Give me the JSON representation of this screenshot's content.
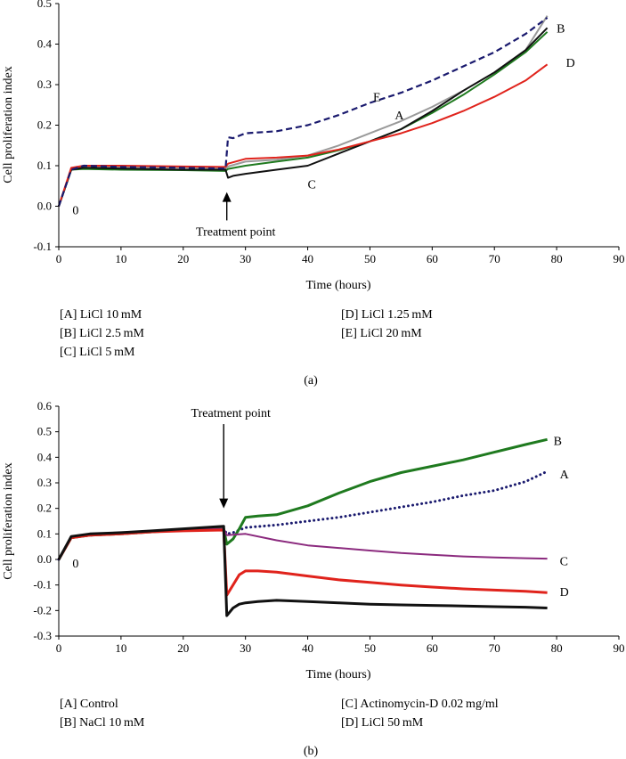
{
  "chart_data": [
    {
      "type": "line",
      "panel_label": "(a)",
      "xlabel": "Time (hours)",
      "ylabel": "Cell proliferation index",
      "xlim": [
        0,
        90
      ],
      "ylim": [
        -0.1,
        0.5
      ],
      "xticks": [
        0,
        10,
        20,
        30,
        40,
        50,
        60,
        70,
        80,
        90
      ],
      "yticks": [
        -0.1,
        0.0,
        0.1,
        0.2,
        0.3,
        0.4,
        0.5
      ],
      "ytick_decimals": 1,
      "grid": false,
      "annotations": {
        "treatment_label": "Treatment point",
        "treatment_x": 27,
        "arrow_direction": "up",
        "origin_label": "0"
      },
      "legend": {
        "left": [
          "[A] LiCl 10 mM",
          "[B] LiCl 2.5 mM",
          "[C] LiCl 5 mM"
        ],
        "right": [
          "[D] LiCl 1.25 mM",
          "[E] LiCl 20 mM"
        ]
      },
      "series": [
        {
          "name": "A",
          "label": "A",
          "color": "#9a9a9a",
          "style": "solid",
          "width": 2,
          "x": [
            0,
            2,
            4,
            10,
            20,
            26.8,
            27.2,
            30,
            35,
            40,
            45,
            50,
            55,
            60,
            65,
            70,
            75,
            78.5
          ],
          "y": [
            0,
            0.09,
            0.1,
            0.097,
            0.095,
            0.093,
            0.098,
            0.11,
            0.115,
            0.125,
            0.15,
            0.18,
            0.21,
            0.245,
            0.285,
            0.33,
            0.385,
            0.47
          ],
          "label_at": [
            54,
            0.225
          ]
        },
        {
          "name": "B",
          "label": "B",
          "color": "#1f7a1f",
          "style": "solid",
          "width": 2,
          "x": [
            0,
            2,
            4,
            10,
            20,
            26.8,
            27.2,
            30,
            35,
            40,
            45,
            50,
            55,
            60,
            65,
            70,
            75,
            78.5
          ],
          "y": [
            0,
            0.09,
            0.092,
            0.09,
            0.089,
            0.087,
            0.092,
            0.1,
            0.11,
            0.12,
            0.138,
            0.16,
            0.19,
            0.23,
            0.275,
            0.325,
            0.38,
            0.43
          ],
          "label_at": [
            80,
            0.44
          ]
        },
        {
          "name": "C",
          "label": "C",
          "color": "#111111",
          "style": "solid",
          "width": 2,
          "x": [
            0,
            2,
            4,
            10,
            20,
            26.8,
            27.2,
            28,
            30,
            35,
            40,
            45,
            50,
            55,
            60,
            65,
            70,
            75,
            78.5
          ],
          "y": [
            0,
            0.09,
            0.095,
            0.093,
            0.09,
            0.09,
            0.07,
            0.075,
            0.08,
            0.09,
            0.1,
            0.13,
            0.16,
            0.19,
            0.235,
            0.285,
            0.33,
            0.385,
            0.44
          ],
          "label_at": [
            40,
            0.055
          ]
        },
        {
          "name": "D",
          "label": "D",
          "color": "#e0231c",
          "style": "solid",
          "width": 2,
          "x": [
            0,
            2,
            4,
            10,
            20,
            26.8,
            27.2,
            30,
            35,
            40,
            45,
            50,
            55,
            60,
            65,
            70,
            75,
            78.5
          ],
          "y": [
            0,
            0.095,
            0.1,
            0.1,
            0.098,
            0.097,
            0.105,
            0.117,
            0.12,
            0.125,
            0.14,
            0.16,
            0.18,
            0.205,
            0.235,
            0.27,
            0.31,
            0.35
          ],
          "label_at": [
            81.5,
            0.355
          ]
        },
        {
          "name": "E",
          "label": "E",
          "color": "#1a1a6e",
          "style": "dashed",
          "width": 2.2,
          "x": [
            0,
            2,
            4,
            10,
            20,
            26.8,
            27.2,
            28,
            30,
            35,
            40,
            45,
            50,
            55,
            60,
            65,
            70,
            75,
            78.5
          ],
          "y": [
            0,
            0.09,
            0.1,
            0.097,
            0.095,
            0.093,
            0.17,
            0.168,
            0.18,
            0.185,
            0.2,
            0.225,
            0.255,
            0.28,
            0.31,
            0.345,
            0.38,
            0.425,
            0.465
          ],
          "label_at": [
            50.5,
            0.27
          ]
        }
      ]
    },
    {
      "type": "line",
      "panel_label": "(b)",
      "xlabel": "Time (hours)",
      "ylabel": "Cell proliferation index",
      "xlim": [
        0,
        90
      ],
      "ylim": [
        -0.3,
        0.6
      ],
      "xticks": [
        0,
        10,
        20,
        30,
        40,
        50,
        60,
        70,
        80,
        90
      ],
      "yticks": [
        -0.3,
        -0.2,
        -0.1,
        0.0,
        0.1,
        0.2,
        0.3,
        0.4,
        0.5,
        0.6
      ],
      "ytick_decimals": 1,
      "grid": false,
      "annotations": {
        "treatment_label": "Treatment point",
        "treatment_x": 26.5,
        "arrow_direction": "down",
        "origin_label": "0"
      },
      "legend": {
        "left": [
          "[A] Control",
          "[B] NaCl 10 mM"
        ],
        "right": [
          "[C] Actinomycin-D 0.02 mg/ml",
          "[D] LiCl 50 mM"
        ]
      },
      "series": [
        {
          "name": "A",
          "label": "A",
          "color": "#1a1a6e",
          "style": "dotted",
          "width": 3,
          "x": [
            0,
            2,
            5,
            10,
            15,
            20,
            26.5,
            27,
            28,
            30,
            35,
            40,
            45,
            50,
            55,
            60,
            65,
            70,
            75,
            78.5
          ],
          "y": [
            0,
            0.085,
            0.095,
            0.1,
            0.108,
            0.115,
            0.12,
            0.1,
            0.105,
            0.125,
            0.135,
            0.15,
            0.165,
            0.185,
            0.205,
            0.225,
            0.25,
            0.27,
            0.305,
            0.345
          ],
          "label_at": [
            80.5,
            0.335
          ]
        },
        {
          "name": "B",
          "label": "B",
          "color": "#1f7a1f",
          "style": "solid",
          "width": 3,
          "x": [
            0,
            2,
            5,
            10,
            15,
            20,
            26.5,
            27,
            28,
            29,
            30,
            32,
            35,
            40,
            45,
            50,
            55,
            60,
            65,
            70,
            75,
            78.5
          ],
          "y": [
            0,
            0.085,
            0.095,
            0.1,
            0.108,
            0.115,
            0.12,
            0.06,
            0.08,
            0.12,
            0.165,
            0.17,
            0.175,
            0.21,
            0.26,
            0.305,
            0.34,
            0.365,
            0.39,
            0.42,
            0.45,
            0.47
          ],
          "label_at": [
            79.5,
            0.465
          ]
        },
        {
          "name": "C",
          "label": "C",
          "color": "#8b2a7e",
          "style": "solid",
          "width": 2,
          "x": [
            0,
            2,
            5,
            10,
            15,
            20,
            26.5,
            27,
            30,
            35,
            40,
            45,
            50,
            55,
            60,
            65,
            70,
            75,
            78.5
          ],
          "y": [
            0,
            0.085,
            0.095,
            0.1,
            0.108,
            0.115,
            0.12,
            0.095,
            0.1,
            0.075,
            0.055,
            0.045,
            0.035,
            0.025,
            0.018,
            0.012,
            0.008,
            0.005,
            0.003
          ],
          "label_at": [
            80.5,
            -0.005
          ]
        },
        {
          "name": "D",
          "label": "D",
          "color": "#e0231c",
          "style": "solid",
          "width": 3,
          "x": [
            0,
            2,
            5,
            10,
            15,
            20,
            26.5,
            27,
            28,
            29,
            30,
            32,
            35,
            40,
            45,
            50,
            55,
            60,
            65,
            70,
            75,
            78.5
          ],
          "y": [
            0,
            0.085,
            0.095,
            0.1,
            0.108,
            0.112,
            0.115,
            -0.14,
            -0.1,
            -0.06,
            -0.045,
            -0.045,
            -0.05,
            -0.065,
            -0.08,
            -0.09,
            -0.1,
            -0.108,
            -0.115,
            -0.12,
            -0.125,
            -0.13
          ],
          "label_at": [
            80.5,
            -0.125
          ]
        },
        {
          "name": "black",
          "label": "",
          "color": "#111111",
          "style": "solid",
          "width": 3,
          "x": [
            0,
            2,
            5,
            10,
            15,
            20,
            26.5,
            27,
            28,
            29,
            30,
            32,
            35,
            40,
            45,
            50,
            55,
            60,
            65,
            70,
            75,
            78.5
          ],
          "y": [
            0,
            0.09,
            0.1,
            0.105,
            0.112,
            0.12,
            0.13,
            -0.22,
            -0.19,
            -0.175,
            -0.17,
            -0.165,
            -0.16,
            -0.165,
            -0.17,
            -0.175,
            -0.178,
            -0.18,
            -0.182,
            -0.185,
            -0.187,
            -0.19
          ],
          "label_at": null
        }
      ]
    }
  ]
}
